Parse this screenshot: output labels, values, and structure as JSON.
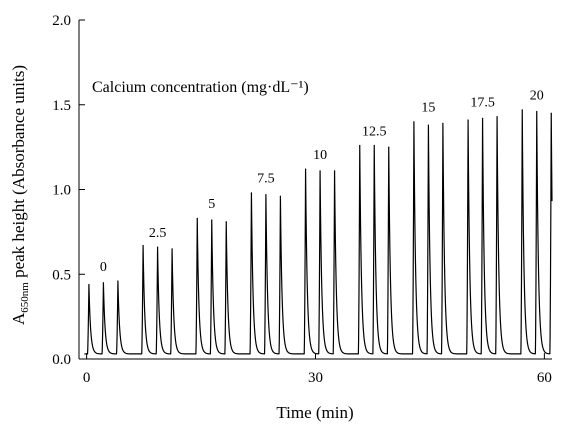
{
  "chart_data": {
    "type": "line",
    "title": "Calcium concentration (mg·dL⁻¹)",
    "xlabel": "Time (min)",
    "ylabel_main": "A",
    "ylabel_sub": "650nm",
    "ylabel_rest": " peak height (Absorbance units)",
    "xlim": [
      -1,
      61
    ],
    "ylim": [
      0,
      2.0
    ],
    "x_ticks": [
      0,
      30,
      60
    ],
    "y_ticks": [
      "0.0",
      "0.5",
      "1.0",
      "1.5",
      "2.0"
    ],
    "grid": false,
    "baseline": 0.03,
    "series": [
      {
        "peaks": [
          {
            "x": 0.3,
            "y": 0.44
          },
          {
            "x": 2.2,
            "y": 0.45
          },
          {
            "x": 4.1,
            "y": 0.46
          },
          {
            "x": 7.4,
            "y": 0.67
          },
          {
            "x": 9.3,
            "y": 0.66
          },
          {
            "x": 11.2,
            "y": 0.65
          },
          {
            "x": 14.5,
            "y": 0.83
          },
          {
            "x": 16.4,
            "y": 0.82
          },
          {
            "x": 18.3,
            "y": 0.81
          },
          {
            "x": 21.6,
            "y": 0.98
          },
          {
            "x": 23.5,
            "y": 0.97
          },
          {
            "x": 25.4,
            "y": 0.96
          },
          {
            "x": 28.7,
            "y": 1.12
          },
          {
            "x": 30.6,
            "y": 1.11
          },
          {
            "x": 32.5,
            "y": 1.11
          },
          {
            "x": 35.8,
            "y": 1.26
          },
          {
            "x": 37.7,
            "y": 1.26
          },
          {
            "x": 39.6,
            "y": 1.25
          },
          {
            "x": 42.9,
            "y": 1.4
          },
          {
            "x": 44.8,
            "y": 1.38
          },
          {
            "x": 46.7,
            "y": 1.39
          },
          {
            "x": 50.0,
            "y": 1.41
          },
          {
            "x": 51.9,
            "y": 1.42
          },
          {
            "x": 53.8,
            "y": 1.43
          },
          {
            "x": 57.1,
            "y": 1.47
          },
          {
            "x": 59.0,
            "y": 1.46
          },
          {
            "x": 60.9,
            "y": 1.45
          }
        ]
      }
    ],
    "annotations": [
      {
        "text": "0",
        "x": 2.2,
        "y": 0.52
      },
      {
        "text": "2.5",
        "x": 9.3,
        "y": 0.72
      },
      {
        "text": "5",
        "x": 16.4,
        "y": 0.89
      },
      {
        "text": "7.5",
        "x": 23.5,
        "y": 1.04
      },
      {
        "text": "10",
        "x": 30.6,
        "y": 1.18
      },
      {
        "text": "12.5",
        "x": 37.7,
        "y": 1.32
      },
      {
        "text": "15",
        "x": 44.8,
        "y": 1.46
      },
      {
        "text": "17.5",
        "x": 51.9,
        "y": 1.49
      },
      {
        "text": "20",
        "x": 59.0,
        "y": 1.53
      }
    ]
  }
}
